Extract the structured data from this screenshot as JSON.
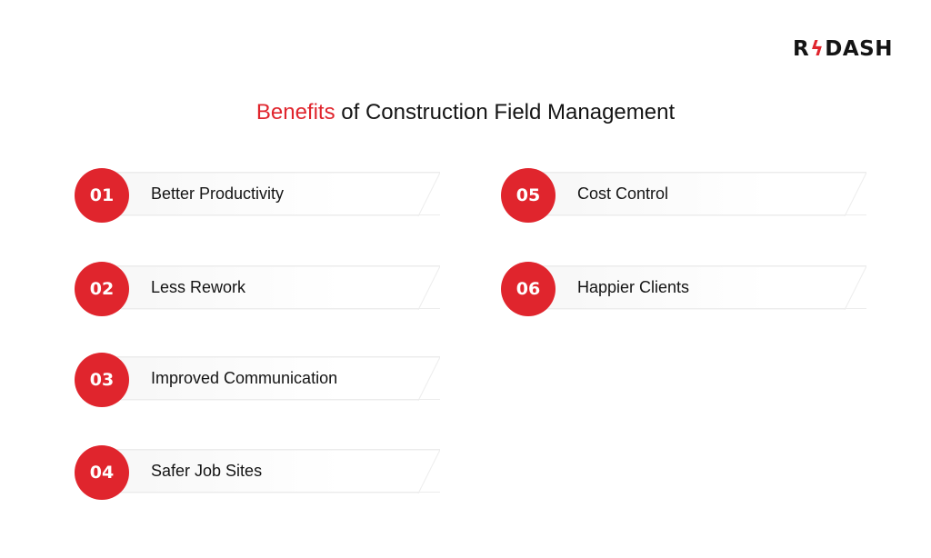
{
  "logo": {
    "left": "R",
    "right": "DASH",
    "bolt_icon": "lightning-bolt-icon"
  },
  "title": {
    "accent": "Benefits",
    "rest": " of Construction Field Management"
  },
  "benefits": [
    {
      "number": "01",
      "label": "Better Productivity"
    },
    {
      "number": "02",
      "label": "Less Rework"
    },
    {
      "number": "03",
      "label": "Improved Communication"
    },
    {
      "number": "04",
      "label": "Safer Job Sites"
    },
    {
      "number": "05",
      "label": "Cost Control"
    },
    {
      "number": "06",
      "label": "Happier Clients"
    }
  ],
  "colors": {
    "accent": "#e0252d",
    "text": "#141414"
  }
}
